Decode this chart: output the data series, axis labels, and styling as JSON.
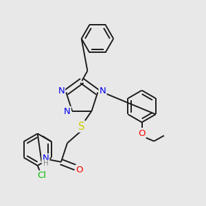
{
  "bg_color": "#e8e8e8",
  "line_color": "#1a1a1a",
  "atom_colors": {
    "N": "#0000ee",
    "S": "#cccc00",
    "O": "#ff0000",
    "Cl": "#00bb00",
    "H": "#888888",
    "C": "#1a1a1a"
  },
  "bond_lw": 1.4,
  "font_size": 8.5
}
